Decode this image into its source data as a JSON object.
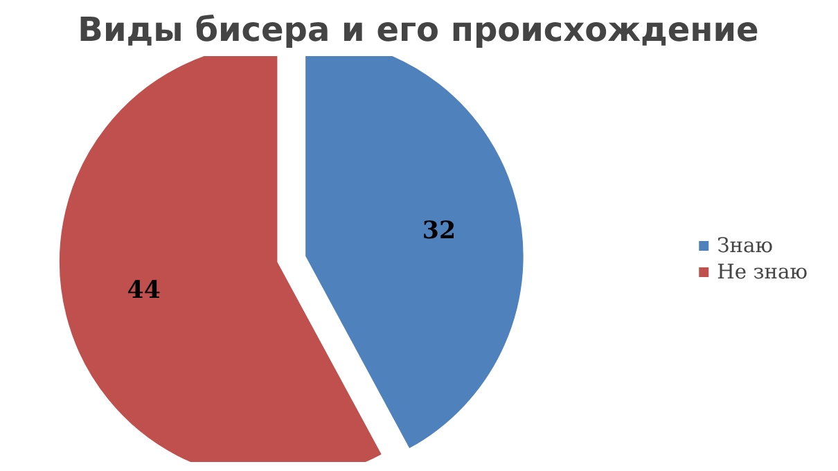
{
  "chart_data": {
    "type": "pie",
    "title": "Виды бисера и его происхождение",
    "categories": [
      "Знаю",
      "Не знаю"
    ],
    "values": [
      32,
      44
    ],
    "colors": [
      "#4f81bd",
      "#c0504d"
    ],
    "data_labels": true,
    "legend": "right"
  }
}
